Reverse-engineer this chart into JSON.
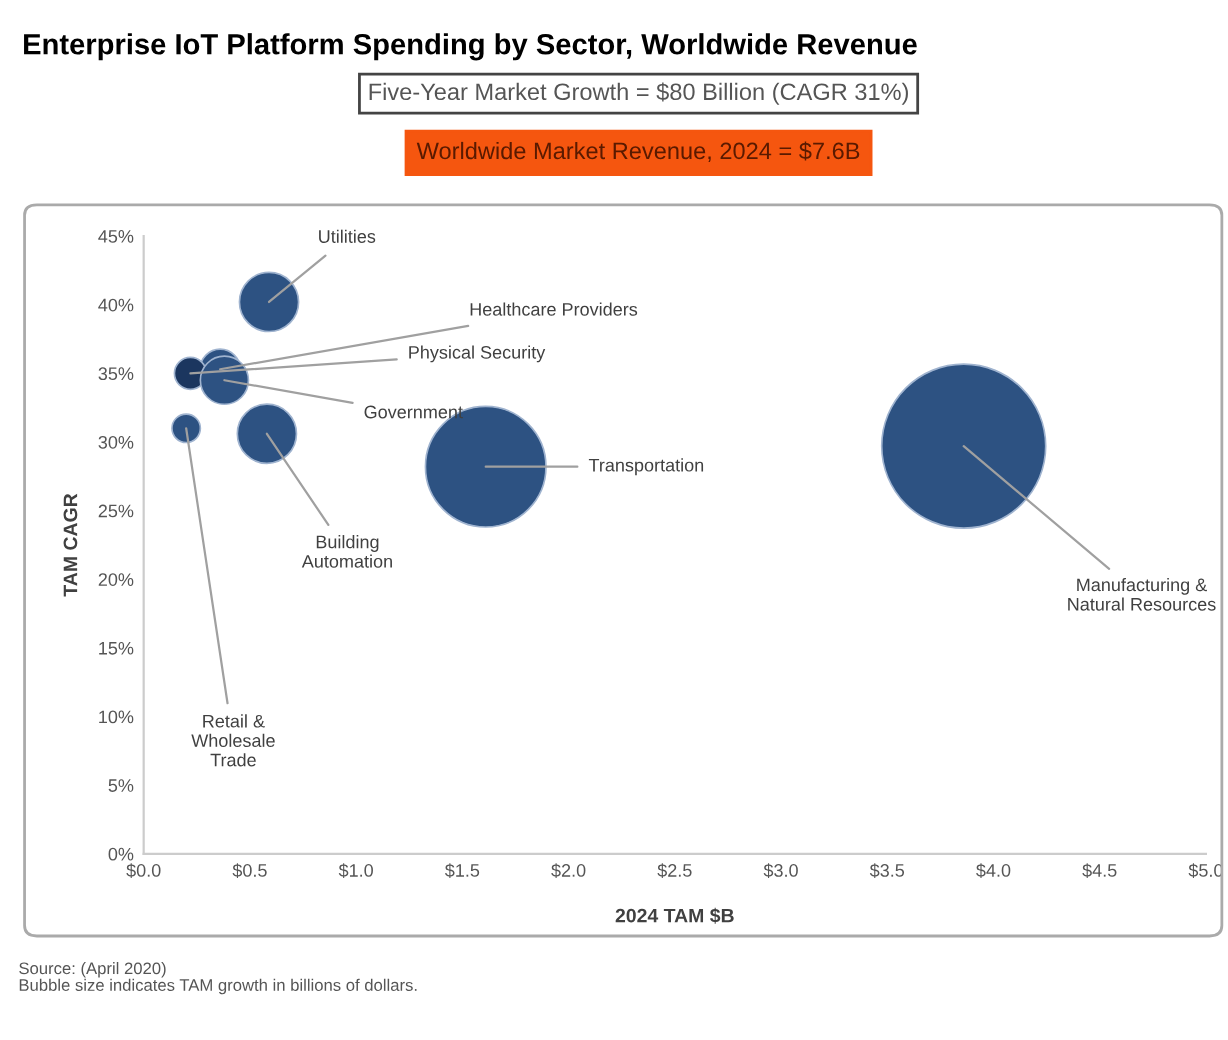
{
  "chart_data": {
    "type": "bubble",
    "title": "Enterprise IoT Platform Spending by Sector, Worldwide Revenue",
    "subtitle": "Five-Year Market Growth = $80 Billion (CAGR 31%)",
    "xlabel": "2024 TAM $B",
    "ylabel": "TAM CAGR",
    "annotations": [
      "Worldwide Market Revenue, 2024 = $7.6B",
      "Source: (April 2020)\nBubble size indicates TAM growth in billions of dollars."
    ],
    "series": [
      {
        "name": "Utilities",
        "color": "#2d5282",
        "x": [
          0.59
        ],
        "values": [
          40.2
        ],
        "sizes": [
          0.13
        ]
      },
      {
        "name": "Healthcare Providers",
        "color": "#2d5282",
        "x": [
          0.36
        ],
        "values": [
          35.3
        ],
        "sizes": [
          0.06
        ]
      },
      {
        "name": "Physical Security",
        "color": "#1b365f",
        "x": [
          0.22
        ],
        "values": [
          35
        ],
        "sizes": [
          0.038
        ]
      },
      {
        "name": "Government",
        "color": "#2d5282",
        "x": [
          0.38
        ],
        "values": [
          34.5
        ],
        "sizes": [
          0.086
        ]
      },
      {
        "name": "Building\nAutomation",
        "color": "#2d5282",
        "x": [
          0.58
        ],
        "values": [
          30.6
        ],
        "sizes": [
          0.13
        ]
      },
      {
        "name": "Retail &\nWholesale\nTrade",
        "color": "#2d5282",
        "x": [
          0.2
        ],
        "values": [
          31
        ],
        "sizes": [
          0.03
        ]
      },
      {
        "name": "Transportation",
        "color": "#2d5282",
        "x": [
          1.61
        ],
        "values": [
          28.2
        ],
        "sizes": [
          0.54
        ]
      },
      {
        "name": "Manufacturing &\nNatural Resources",
        "color": "#2d5282",
        "x": [
          3.86
        ],
        "values": [
          29.7
        ],
        "sizes": [
          1
        ]
      }
    ],
    "xlim": [
      0,
      5
    ],
    "xticks": [
      {
        "value": 0,
        "label": "$0.0"
      },
      {
        "value": 0.5,
        "label": "$0.5"
      },
      {
        "value": 1,
        "label": "$1.0"
      },
      {
        "value": 1.5,
        "label": "$1.5"
      },
      {
        "value": 2,
        "label": "$2.0"
      },
      {
        "value": 2.5,
        "label": "$2.5"
      },
      {
        "value": 3,
        "label": "$3.0"
      },
      {
        "value": 3.5,
        "label": "$3.5"
      },
      {
        "value": 4,
        "label": "$4.0"
      },
      {
        "value": 4.5,
        "label": "$4.5"
      },
      {
        "value": 5,
        "label": "$5.0"
      }
    ],
    "ylim": [
      0,
      45
    ],
    "yticks": [
      {
        "value": 0,
        "label": "0%"
      },
      {
        "value": 5,
        "label": "5%"
      },
      {
        "value": 10,
        "label": "10%"
      },
      {
        "value": 15,
        "label": "15%"
      },
      {
        "value": 20,
        "label": "20%"
      },
      {
        "value": 25,
        "label": "25%"
      },
      {
        "value": 30,
        "label": "30%"
      },
      {
        "value": 35,
        "label": "35%"
      },
      {
        "value": 40,
        "label": "40%"
      },
      {
        "value": 45,
        "label": "45%"
      }
    ],
    "grid": false,
    "legend": false
  }
}
